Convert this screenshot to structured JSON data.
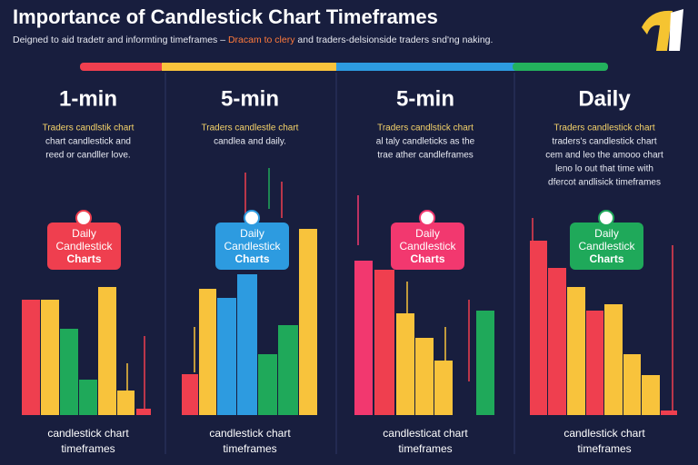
{
  "header": {
    "title": "Importance of Candlestick Chart Timeframes",
    "subtitle": [
      "Deigned to aid tradetr and informting timeframes – ",
      "Dracam to clery",
      " and traders-delsionside traders snd'ng naking."
    ]
  },
  "panels": [
    {
      "heading": "1-min",
      "lines": [
        "Traders candlstik chart",
        "chart candlestick and",
        "reed or candller love."
      ],
      "badge": [
        "Daily",
        "Candlestick",
        "Charts"
      ],
      "footer": [
        "candlestick chart",
        "timeframes"
      ]
    },
    {
      "heading": "5-min",
      "lines": [
        "Traders candlestle chart",
        "candlea and daily."
      ],
      "badge": [
        "Daily",
        "Candlestick",
        "Charts"
      ],
      "footer": [
        "candlestick chart",
        "timeframes"
      ]
    },
    {
      "heading": "5-min",
      "lines": [
        "Traders candlstick chart",
        "al taly candleticks as the",
        "trae ather candleframes"
      ],
      "badge": [
        "Daily",
        "Candlestick",
        "Charts"
      ],
      "footer": [
        "candlesticat chart",
        "timeframes"
      ]
    },
    {
      "heading": "Daily",
      "lines": [
        "Traders candlestick chart",
        "traders's candlestick chart",
        "cem and leo the amooo chart",
        "leno lo out that time with",
        "dfercot andlisick timeframes"
      ],
      "badge": [
        "Daily",
        "Candlestick",
        "Charts"
      ],
      "footer": [
        "candlestick chart",
        "timeframes"
      ]
    }
  ]
}
